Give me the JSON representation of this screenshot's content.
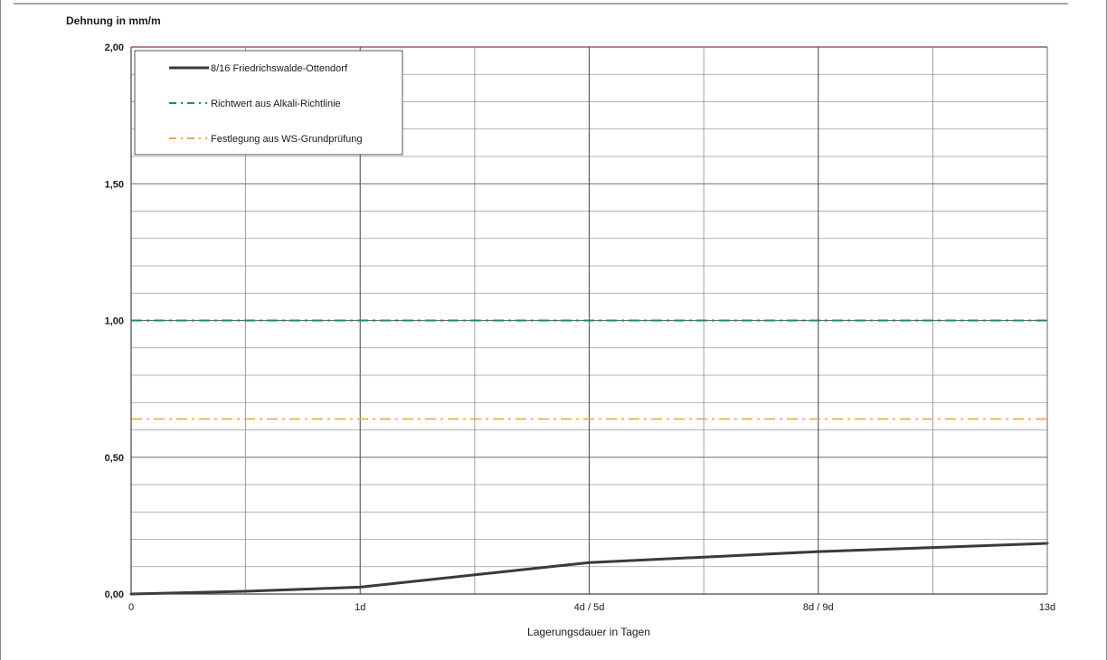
{
  "chart_data": {
    "type": "line",
    "ylabel": "Dehnung in mm/m",
    "xlabel": "Lagerungsdauer in Tagen",
    "y_tick_labels": [
      "0,00",
      "0,50",
      "1,00",
      "1,50",
      "2,00"
    ],
    "x_tick_labels": [
      "0",
      "1d",
      "4d / 5d",
      "8d / 9d",
      "13d"
    ],
    "ylim": [
      0,
      2.0
    ],
    "grid": true,
    "legend_position": "top-left",
    "series": [
      {
        "name": "8/16 Friedrichswalde-Ottendorf",
        "style": "solid",
        "color": "#3a3a3a",
        "x": [
          0,
          1,
          2,
          3,
          4,
          5,
          6,
          7,
          8
        ],
        "y": [
          0.0,
          0.01,
          0.025,
          0.07,
          0.115,
          0.135,
          0.155,
          0.17,
          0.185
        ]
      },
      {
        "name": "Richtwert aus Alkali-Richtlinie",
        "style": "dash-dot",
        "color": "#1f8a6a",
        "constant": 1.0
      },
      {
        "name": "Festlegung aus WS-Grundprüfung",
        "style": "dash-dot",
        "color": "#f0a640",
        "constant": 0.64
      }
    ]
  }
}
